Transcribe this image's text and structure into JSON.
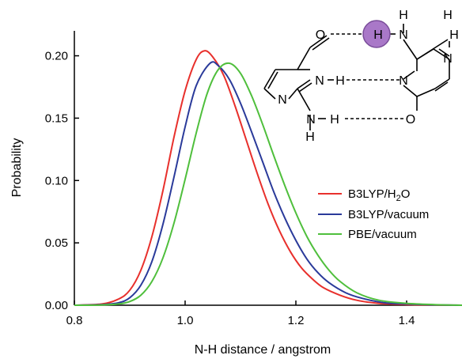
{
  "chart_data": {
    "type": "line",
    "xlabel": "N-H distance / angstrom",
    "ylabel": "Probability",
    "xlim": [
      0.8,
      1.5
    ],
    "ylim": [
      0,
      0.22
    ],
    "xticks": [
      "0.8",
      "1.0",
      "1.2",
      "1.4"
    ],
    "yticks": [
      "0.00",
      "0.05",
      "0.10",
      "0.15",
      "0.20"
    ],
    "grid": false,
    "legend_position": "right",
    "series": [
      {
        "name": "B3LYP/H2O",
        "color": "#e8302c",
        "x": [
          0.8,
          0.85,
          0.88,
          0.9,
          0.92,
          0.94,
          0.96,
          0.98,
          1.0,
          1.02,
          1.035,
          1.05,
          1.07,
          1.09,
          1.11,
          1.13,
          1.15,
          1.17,
          1.19,
          1.21,
          1.23,
          1.25,
          1.28,
          1.31,
          1.35,
          1.4,
          1.45,
          1.5
        ],
        "y": [
          0.0,
          0.001,
          0.005,
          0.012,
          0.028,
          0.055,
          0.092,
          0.135,
          0.172,
          0.197,
          0.204,
          0.199,
          0.184,
          0.16,
          0.133,
          0.106,
          0.081,
          0.06,
          0.043,
          0.03,
          0.021,
          0.014,
          0.008,
          0.004,
          0.0015,
          0.0005,
          0.0002,
          0.0
        ]
      },
      {
        "name": "B3LYP/vacuum",
        "color": "#2a3a9a",
        "x": [
          0.8,
          0.85,
          0.88,
          0.9,
          0.92,
          0.94,
          0.96,
          0.98,
          1.0,
          1.02,
          1.045,
          1.06,
          1.08,
          1.1,
          1.12,
          1.14,
          1.16,
          1.18,
          1.2,
          1.22,
          1.24,
          1.26,
          1.29,
          1.32,
          1.36,
          1.4,
          1.45,
          1.5
        ],
        "y": [
          0.0,
          0.0005,
          0.002,
          0.006,
          0.016,
          0.035,
          0.065,
          0.103,
          0.143,
          0.176,
          0.194,
          0.192,
          0.181,
          0.162,
          0.139,
          0.115,
          0.091,
          0.07,
          0.052,
          0.037,
          0.026,
          0.018,
          0.01,
          0.0055,
          0.002,
          0.001,
          0.0003,
          0.0
        ]
      },
      {
        "name": "PBE/vacuum",
        "color": "#4fbf3c",
        "x": [
          0.8,
          0.85,
          0.88,
          0.9,
          0.92,
          0.94,
          0.96,
          0.98,
          1.0,
          1.02,
          1.04,
          1.06,
          1.08,
          1.1,
          1.12,
          1.14,
          1.16,
          1.18,
          1.2,
          1.22,
          1.24,
          1.26,
          1.28,
          1.31,
          1.35,
          1.4,
          1.45,
          1.5
        ],
        "y": [
          0.0,
          0.0002,
          0.001,
          0.003,
          0.008,
          0.019,
          0.038,
          0.066,
          0.101,
          0.138,
          0.17,
          0.189,
          0.194,
          0.186,
          0.168,
          0.145,
          0.12,
          0.096,
          0.074,
          0.055,
          0.04,
          0.028,
          0.019,
          0.01,
          0.004,
          0.0015,
          0.0005,
          0.0
        ]
      }
    ],
    "inset": {
      "atoms": [
        "O",
        "H",
        "N",
        "H",
        "H",
        "N",
        "H",
        "N",
        "N",
        "H",
        "N",
        "H",
        "O",
        "N",
        "H"
      ],
      "highlight_color": "#a978c8"
    }
  },
  "legend": {
    "items": [
      {
        "prefix": "B3LYP/H",
        "sub": "2",
        "suffix": "O"
      },
      {
        "prefix": "B3LYP/vacuum",
        "sub": "",
        "suffix": ""
      },
      {
        "prefix": "PBE/vacuum",
        "sub": "",
        "suffix": ""
      }
    ]
  }
}
